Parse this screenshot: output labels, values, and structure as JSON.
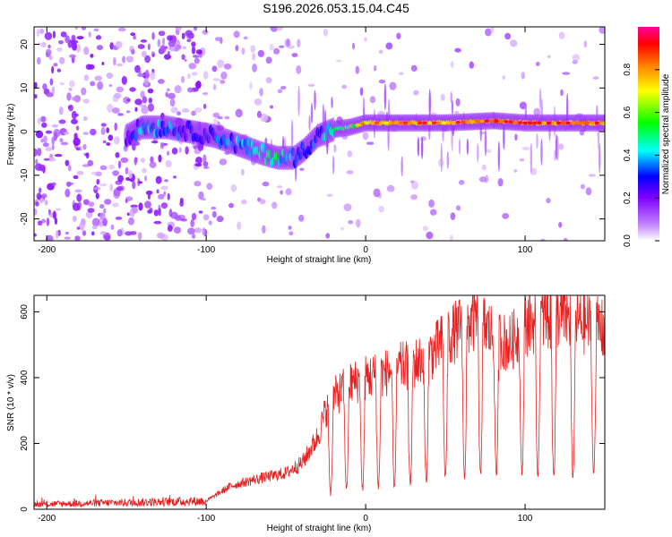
{
  "figure": {
    "title": "S196.2026.053.15.04.C45"
  },
  "chart_data": [
    {
      "type": "heatmap",
      "title": "S196.2026.053.15.04.C45",
      "xlabel": "Height of straight line (km)",
      "ylabel": "Frequency (Hz)",
      "xlim": [
        -208,
        150
      ],
      "ylim": [
        -25,
        24
      ],
      "xticks": [
        -200,
        -100,
        0,
        100
      ],
      "yticks": [
        -20,
        -10,
        0,
        10,
        20
      ],
      "colorbar": {
        "label": "Normalized spectral amplitude",
        "range": [
          0,
          1
        ],
        "ticks": [
          "0.0",
          "0.2",
          "0.4",
          "0.6",
          "0.8"
        ],
        "tick_values": [
          0,
          0.2,
          0.4,
          0.6,
          0.8
        ],
        "colors": [
          "#ffffff",
          "#c080ff",
          "#8000ff",
          "#0000ff",
          "#00ffff",
          "#00ff00",
          "#ffff00",
          "#ff8000",
          "#ff0000",
          "#ff00a0"
        ]
      },
      "ridge": {
        "x": [
          -150,
          -140,
          -125,
          -110,
          -95,
          -80,
          -65,
          -55,
          -45,
          -38,
          -30,
          -20,
          -10,
          0,
          20,
          50,
          80,
          100,
          150
        ],
        "frequency": [
          -1,
          1,
          1,
          0,
          -1,
          -3,
          -5,
          -6,
          -6,
          -4,
          -1,
          0.5,
          1,
          2,
          2,
          2,
          2.5,
          2,
          2
        ],
        "amplitude": [
          0.2,
          0.5,
          0.45,
          0.35,
          0.4,
          0.45,
          0.55,
          0.55,
          0.45,
          0.4,
          0.45,
          0.55,
          0.6,
          0.7,
          0.8,
          0.75,
          0.85,
          0.8,
          0.8
        ]
      }
    },
    {
      "type": "line",
      "xlabel": "Height of straight line (km)",
      "ylabel": "SNR (10 * v/v)",
      "xlim": [
        -208,
        150
      ],
      "ylim": [
        0,
        650
      ],
      "xticks": [
        -200,
        -100,
        0,
        100
      ],
      "yticks": [
        0,
        200,
        400,
        600
      ],
      "color": "#e62020",
      "envelope": {
        "x": [
          -208,
          -100,
          -95,
          -85,
          -70,
          -50,
          -40,
          -30,
          -25,
          -20,
          -10,
          0,
          10,
          20,
          30,
          40,
          45,
          50,
          60,
          70,
          80,
          90,
          100,
          110,
          120,
          130,
          140,
          150
        ],
        "snr": [
          15,
          25,
          40,
          70,
          90,
          110,
          140,
          220,
          300,
          340,
          380,
          400,
          410,
          430,
          440,
          470,
          490,
          520,
          550,
          580,
          530,
          500,
          560,
          580,
          590,
          580,
          560,
          540
        ]
      },
      "dips": {
        "x": [
          -22,
          -12,
          -2,
          8,
          18,
          28,
          38,
          50,
          62,
          72,
          82,
          98,
          108,
          118,
          130,
          143
        ],
        "snr": [
          50,
          60,
          60,
          70,
          70,
          80,
          85,
          100,
          100,
          110,
          110,
          110,
          110,
          100,
          100,
          110
        ]
      }
    }
  ]
}
